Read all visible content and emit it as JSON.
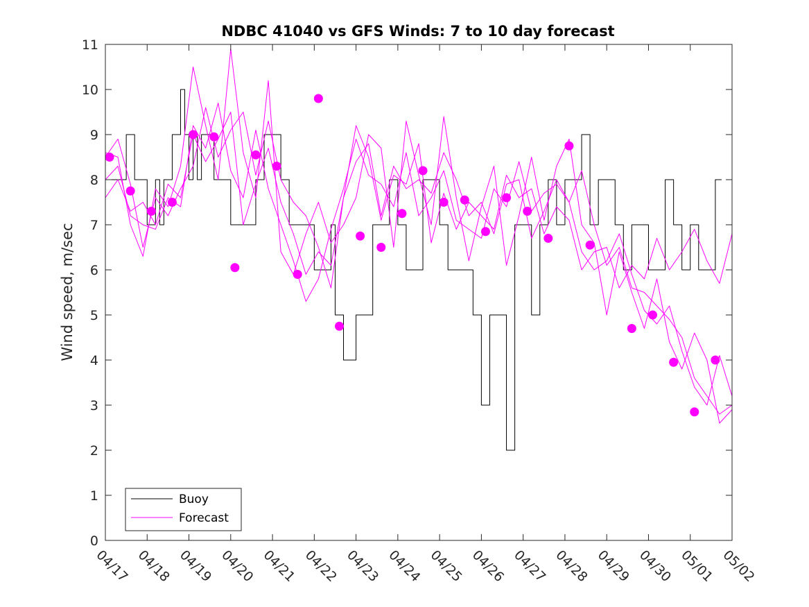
{
  "chart_data": {
    "type": "line",
    "title": "NDBC 41040 vs GFS Winds: 7 to 10 day forecast",
    "xlabel": "",
    "ylabel": "Wind speed, m/sec",
    "xlim": [
      0,
      15
    ],
    "ylim": [
      0,
      11
    ],
    "x_ticks": [
      "04/17",
      "04/18",
      "04/19",
      "04/20",
      "04/21",
      "04/22",
      "04/23",
      "04/24",
      "04/25",
      "04/26",
      "04/27",
      "04/28",
      "04/29",
      "04/30",
      "05/01",
      "05/02"
    ],
    "y_ticks": [
      0,
      1,
      2,
      3,
      4,
      5,
      6,
      7,
      8,
      9,
      10,
      11
    ],
    "grid": false,
    "legend": {
      "placement": "bottom-left",
      "entries": [
        {
          "label": "Buoy",
          "color": "#000000"
        },
        {
          "label": "Forecast",
          "color": "#ff00ff"
        }
      ]
    },
    "series": [
      {
        "name": "Buoy",
        "color": "#000000",
        "x": [
          0,
          0.3,
          0.5,
          0.7,
          0.9,
          1.0,
          1.1,
          1.2,
          1.3,
          1.4,
          1.5,
          1.6,
          1.7,
          1.8,
          1.9,
          2.0,
          2.1,
          2.2,
          2.3,
          2.4,
          2.6,
          2.8,
          3.0,
          3.2,
          3.4,
          3.6,
          3.8,
          4.0,
          4.2,
          4.4,
          4.6,
          4.8,
          5.0,
          5.2,
          5.4,
          5.5,
          5.7,
          5.8,
          6.0,
          6.2,
          6.4,
          6.6,
          6.8,
          7.0,
          7.2,
          7.4,
          7.6,
          7.8,
          8.0,
          8.2,
          8.4,
          8.6,
          8.8,
          9.0,
          9.2,
          9.4,
          9.6,
          9.8,
          10.0,
          10.2,
          10.4,
          10.6,
          10.8,
          11.0,
          11.2,
          11.4,
          11.6,
          11.8,
          12.0,
          12.2,
          12.4,
          12.6,
          12.8,
          13.0,
          13.2,
          13.4,
          13.6,
          13.8,
          14.0,
          14.2,
          14.4,
          14.6
        ],
        "values": [
          8,
          8,
          9,
          8,
          8,
          7,
          7,
          8,
          7,
          8,
          8,
          9,
          9,
          10,
          9,
          8,
          9,
          8,
          9,
          9,
          8,
          8,
          7,
          7,
          7,
          8,
          9,
          9,
          8,
          7,
          7,
          7,
          6,
          6,
          7,
          5,
          4,
          4,
          5,
          5,
          7,
          7,
          8,
          7,
          6,
          6,
          8,
          8,
          7,
          6,
          6,
          6,
          5,
          3,
          5,
          5,
          2,
          7,
          7,
          5,
          7,
          8,
          7,
          8,
          8,
          9,
          7,
          8,
          8,
          7,
          6,
          7,
          7,
          6,
          6,
          8,
          7,
          6,
          7,
          6,
          6,
          8
        ]
      },
      {
        "name": "Forecast",
        "color": "#ff00ff",
        "x": [
          0,
          0.3,
          0.6,
          0.9,
          1.2,
          1.5,
          1.8,
          2.1,
          2.4,
          2.7,
          3.0,
          3.3,
          3.6,
          3.9,
          4.2,
          4.5,
          4.8,
          5.1,
          5.4,
          5.7,
          6.0,
          6.3,
          6.6,
          6.9,
          7.2,
          7.5,
          7.8,
          8.1,
          8.4,
          8.7,
          9.0,
          9.3,
          9.6,
          9.9,
          10.2,
          10.5,
          10.8,
          11.1,
          11.4,
          11.7,
          12.0,
          12.3,
          12.6,
          12.9,
          13.2,
          13.5,
          13.8,
          14.1,
          14.4,
          14.7,
          15.0
        ],
        "values": [
          8.5,
          8.9,
          7.9,
          6.5,
          7.6,
          7.2,
          7.8,
          8.3,
          9.6,
          8.5,
          9.1,
          9.5,
          8.1,
          9.3,
          8.0,
          7.5,
          7.2,
          6.5,
          5.6,
          7.6,
          8.4,
          8.8,
          7.2,
          8.3,
          7.8,
          8.0,
          7.7,
          8.6,
          8.0,
          7.2,
          7.5,
          6.8,
          7.9,
          8.0,
          6.7,
          7.3,
          8.0,
          7.5,
          8.2,
          7.0,
          6.1,
          6.5,
          5.6,
          5.5,
          5.2,
          4.9,
          4.5,
          3.6,
          3.2,
          2.8,
          3.0
        ]
      },
      {
        "name": "Forecast",
        "color": "#ff00ff",
        "x": [
          0,
          0.3,
          0.6,
          0.9,
          1.2,
          1.5,
          1.8,
          2.1,
          2.4,
          2.7,
          3.0,
          3.3,
          3.6,
          3.9,
          4.2,
          4.5,
          4.8,
          5.1,
          5.4,
          5.7,
          6.0,
          6.3,
          6.6,
          6.9,
          7.2,
          7.5,
          7.8,
          8.1,
          8.4,
          8.7,
          9.0,
          9.3,
          9.6,
          9.9,
          10.2,
          10.5,
          10.8,
          11.1,
          11.4,
          11.7,
          12.0,
          12.3,
          12.6,
          12.9,
          13.2,
          13.5,
          13.8,
          14.1,
          14.4,
          14.7,
          15.0
        ],
        "values": [
          8.0,
          8.3,
          7.2,
          7.0,
          6.9,
          7.6,
          7.4,
          9.2,
          8.7,
          9.7,
          8.2,
          7.6,
          9.1,
          7.8,
          7.0,
          6.2,
          5.3,
          5.8,
          6.9,
          7.8,
          8.9,
          8.1,
          7.9,
          7.4,
          8.6,
          7.2,
          7.6,
          8.2,
          7.1,
          6.9,
          6.7,
          7.8,
          7.4,
          8.4,
          7.3,
          7.7,
          7.9,
          7.5,
          6.4,
          6.0,
          6.2,
          6.8,
          5.9,
          5.1,
          4.8,
          5.2,
          4.2,
          3.4,
          3.0,
          4.1,
          3.2
        ]
      },
      {
        "name": "Forecast",
        "color": "#ff00ff",
        "x": [
          0,
          0.3,
          0.6,
          0.9,
          1.2,
          1.5,
          1.8,
          2.1,
          2.4,
          2.7,
          3.0,
          3.3,
          3.6,
          3.9,
          4.2,
          4.5,
          4.8,
          5.1,
          5.4,
          5.7,
          6.0,
          6.3,
          6.6,
          6.9,
          7.2,
          7.5,
          7.8,
          8.1,
          8.4,
          8.7,
          9.0,
          9.3,
          9.6,
          9.9,
          10.2,
          10.5,
          10.8,
          11.1,
          11.4,
          11.7,
          12.0,
          12.3,
          12.6,
          12.9,
          13.2,
          13.5,
          13.8,
          14.1,
          14.4,
          14.7,
          15.0
        ],
        "values": [
          8.6,
          8.5,
          7.0,
          6.3,
          7.8,
          7.4,
          8.3,
          10.5,
          9.2,
          8.0,
          10.9,
          8.6,
          7.6,
          10.2,
          6.4,
          5.9,
          6.8,
          7.5,
          6.6,
          7.0,
          7.6,
          9.0,
          8.7,
          6.5,
          9.3,
          8.1,
          7.0,
          9.4,
          7.6,
          6.2,
          7.4,
          8.3,
          6.1,
          7.2,
          8.5,
          7.1,
          8.3,
          8.9,
          7.0,
          6.6,
          5.0,
          6.4,
          5.5,
          4.7,
          5.8,
          4.4,
          3.8,
          4.6,
          4.0,
          2.6,
          2.9
        ]
      },
      {
        "name": "Forecast",
        "color": "#ff00ff",
        "x": [
          0,
          0.3,
          0.6,
          0.9,
          1.2,
          1.5,
          1.8,
          2.1,
          2.4,
          2.7,
          3.0,
          3.3,
          3.6,
          3.9,
          4.2,
          4.5,
          4.8,
          5.1,
          5.4,
          5.7,
          6.0,
          6.3,
          6.6,
          6.9,
          7.2,
          7.5,
          7.8,
          8.1,
          8.4,
          8.7,
          9.0,
          9.3,
          9.6,
          9.9,
          10.2,
          10.5,
          10.8,
          11.1,
          11.4,
          11.7,
          12.0,
          12.3,
          12.6,
          12.9,
          13.2,
          13.5,
          13.8,
          14.1,
          14.4,
          14.7,
          15.0
        ],
        "values": [
          7.6,
          8.0,
          7.3,
          7.5,
          7.0,
          7.9,
          7.6,
          9.0,
          8.4,
          8.9,
          9.5,
          7.0,
          7.9,
          8.7,
          7.5,
          6.8,
          5.9,
          6.4,
          6.1,
          7.6,
          9.2,
          8.5,
          7.1,
          8.1,
          7.9,
          8.8,
          6.6,
          7.7,
          6.9,
          7.5,
          7.2,
          6.9,
          8.1,
          7.6,
          7.8,
          6.8,
          7.4,
          7.1,
          6.0,
          6.4,
          6.5,
          5.6,
          6.1,
          5.8,
          6.7,
          6.0,
          6.4,
          6.9,
          6.2,
          5.7,
          6.8
        ]
      }
    ],
    "markers": {
      "name": "Forecast",
      "color": "#ff00ff",
      "x": [
        0.1,
        0.6,
        1.1,
        1.6,
        2.1,
        2.6,
        3.1,
        3.6,
        4.1,
        4.6,
        5.1,
        5.6,
        6.1,
        6.6,
        7.1,
        7.6,
        8.1,
        8.6,
        9.1,
        9.6,
        10.1,
        10.6,
        11.1,
        11.6,
        12.6,
        13.1,
        13.6,
        14.1,
        14.6
      ],
      "values": [
        8.5,
        7.75,
        7.3,
        7.5,
        9.0,
        8.95,
        6.05,
        8.55,
        8.3,
        5.9,
        9.8,
        4.75,
        6.75,
        6.5,
        7.25,
        8.2,
        7.5,
        7.55,
        6.85,
        7.6,
        7.3,
        6.7,
        8.75,
        6.55,
        4.7,
        5.0,
        3.95,
        2.85,
        4.0
      ]
    }
  }
}
